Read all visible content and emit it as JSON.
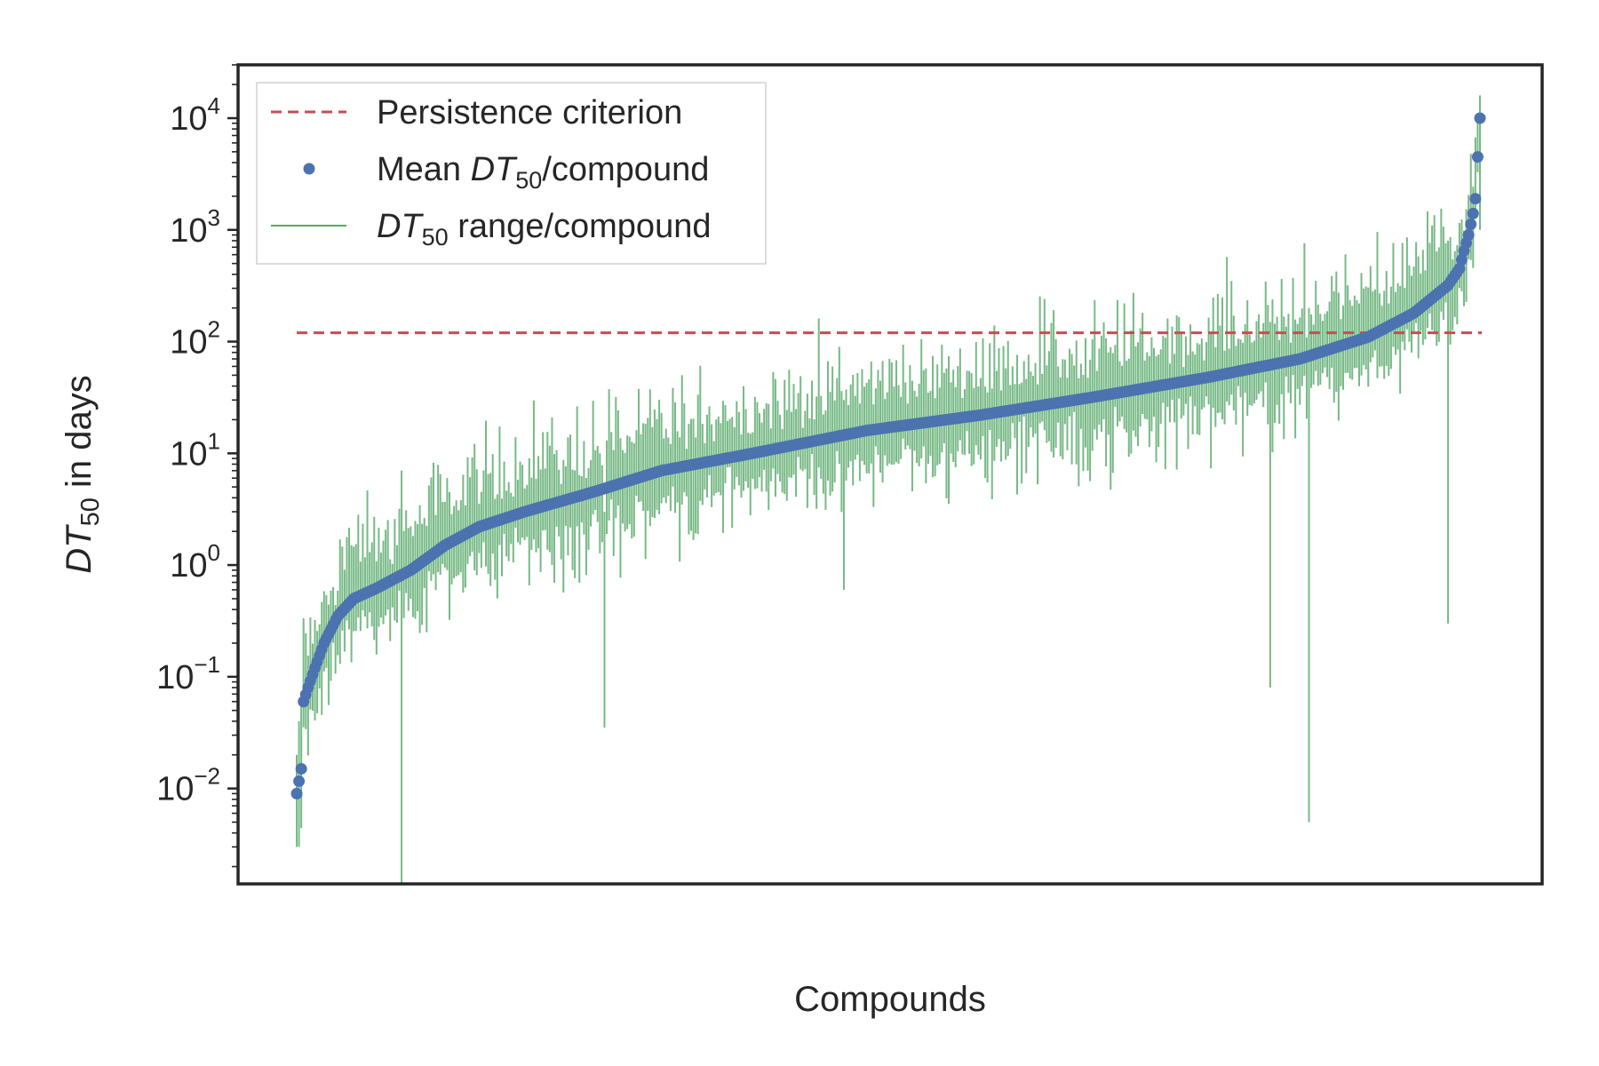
{
  "chart_data": {
    "type": "scatter",
    "title": "",
    "xlabel": "Compounds",
    "ylabel": {
      "italic": "DT",
      "sub": "50",
      "rest": " in days"
    },
    "y_scale": "log",
    "ylim": [
      0.0014,
      30000
    ],
    "y_ticks": [
      {
        "value": 0.01,
        "base": "10",
        "exp": "−2"
      },
      {
        "value": 0.1,
        "base": "10",
        "exp": "−1"
      },
      {
        "value": 1,
        "base": "10",
        "exp": "0"
      },
      {
        "value": 10,
        "base": "10",
        "exp": "1"
      },
      {
        "value": 100,
        "base": "10",
        "exp": "2"
      },
      {
        "value": 1000,
        "base": "10",
        "exp": "3"
      },
      {
        "value": 10000,
        "base": "10",
        "exp": "4"
      }
    ],
    "x_ticks_shown": false,
    "grid": false,
    "legend_position": "top-left",
    "legend": [
      {
        "kind": "dashed-line",
        "color": "#c44e52",
        "parts": [
          {
            "t": "Persistence criterion"
          }
        ]
      },
      {
        "kind": "dot",
        "color": "#4c72b0",
        "parts": [
          {
            "t": "Mean "
          },
          {
            "t": "DT",
            "style": "italic"
          },
          {
            "t": "50",
            "style": "sub"
          },
          {
            "t": "/compound"
          }
        ]
      },
      {
        "kind": "line",
        "color": "#55a868",
        "parts": [
          {
            "t": "DT",
            "style": "italic"
          },
          {
            "t": "50",
            "style": "sub"
          },
          {
            "t": " range/compound"
          }
        ]
      }
    ],
    "persistence_criterion": {
      "value": 120,
      "color": "#c44e52"
    },
    "series": [
      {
        "name": "Mean DT50/compound",
        "color": "#4c72b0",
        "n_compounds": 520,
        "mean_profile": [
          [
            0,
            0.009
          ],
          [
            2,
            0.015
          ],
          [
            3,
            0.06
          ],
          [
            5,
            0.08
          ],
          [
            8,
            0.12
          ],
          [
            12,
            0.2
          ],
          [
            18,
            0.35
          ],
          [
            25,
            0.5
          ],
          [
            35,
            0.62
          ],
          [
            50,
            0.9
          ],
          [
            65,
            1.5
          ],
          [
            80,
            2.2
          ],
          [
            100,
            3.0
          ],
          [
            130,
            4.5
          ],
          [
            160,
            7.0
          ],
          [
            200,
            10.0
          ],
          [
            250,
            16.0
          ],
          [
            300,
            22.0
          ],
          [
            350,
            32.0
          ],
          [
            400,
            48.0
          ],
          [
            440,
            70.0
          ],
          [
            470,
            110.0
          ],
          [
            490,
            180.0
          ],
          [
            505,
            320.0
          ],
          [
            510,
            450.0
          ],
          [
            512,
            650.0
          ],
          [
            514,
            900.0
          ],
          [
            516,
            1400.0
          ],
          [
            517,
            1900.0
          ],
          [
            518,
            4500.0
          ],
          [
            519,
            10000.0
          ]
        ]
      },
      {
        "name": "DT50 range/compound",
        "color": "#55a868",
        "typical_spread_decades": [
          0.5,
          1.0
        ],
        "notable_ranges": [
          {
            "compound_index": 0,
            "min": 0.003,
            "max": 0.02
          },
          {
            "compound_index": 1,
            "min": 0.003,
            "max": 0.04
          },
          {
            "compound_index": 46,
            "min": 0.0014,
            "max": 7.0
          },
          {
            "compound_index": 135,
            "min": 0.035,
            "max": 3.0
          },
          {
            "compound_index": 240,
            "min": 0.6,
            "max": 30.0
          },
          {
            "compound_index": 427,
            "min": 0.08,
            "max": 150.0
          },
          {
            "compound_index": 444,
            "min": 0.005,
            "max": 200.0
          },
          {
            "compound_index": 505,
            "min": 0.3,
            "max": 800.0
          },
          {
            "compound_index": 519,
            "min": 1000.0,
            "max": 16000.0
          }
        ]
      }
    ]
  }
}
